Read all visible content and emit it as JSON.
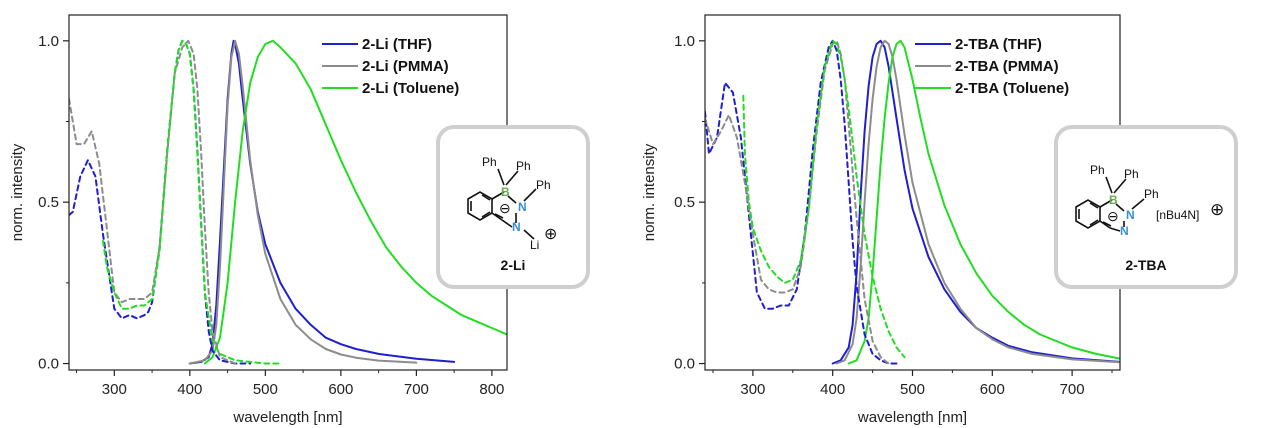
{
  "chart_data": [
    {
      "type": "line",
      "xlabel": "wavelength [nm]",
      "ylabel": "norm. intensity",
      "xlim": [
        240,
        820
      ],
      "ylim": [
        -0.02,
        1.08
      ],
      "xticks": [
        300,
        400,
        500,
        600,
        700,
        800
      ],
      "yticks": [
        0.0,
        0.5,
        1.0
      ],
      "xtick_labels": [
        "300",
        "400",
        "500",
        "600",
        "700",
        "800"
      ],
      "ytick_labels": [
        "0.0",
        "0.5",
        "1.0"
      ],
      "legend_position": "top-right",
      "series": [
        {
          "name": "2-Li (THF)",
          "color": "#1f1fd1",
          "style": "solid",
          "x": [
            400,
            415,
            425,
            430,
            435,
            440,
            445,
            450,
            455,
            458,
            460,
            465,
            470,
            480,
            490,
            500,
            520,
            540,
            560,
            580,
            600,
            620,
            650,
            700,
            750
          ],
          "y": [
            0,
            0.005,
            0.02,
            0.06,
            0.18,
            0.38,
            0.6,
            0.82,
            0.96,
            1.0,
            0.99,
            0.93,
            0.82,
            0.62,
            0.47,
            0.37,
            0.25,
            0.17,
            0.12,
            0.08,
            0.06,
            0.045,
            0.03,
            0.015,
            0.005
          ]
        },
        {
          "name": "2-Li (PMMA)",
          "color": "#8c8c8c",
          "style": "solid",
          "x": [
            400,
            420,
            430,
            435,
            440,
            445,
            450,
            455,
            460,
            465,
            470,
            480,
            490,
            500,
            520,
            540,
            560,
            580,
            600,
            620,
            650,
            700
          ],
          "y": [
            0,
            0.01,
            0.04,
            0.12,
            0.3,
            0.55,
            0.8,
            0.95,
            1.0,
            0.96,
            0.86,
            0.63,
            0.46,
            0.34,
            0.2,
            0.12,
            0.075,
            0.045,
            0.028,
            0.018,
            0.009,
            0.003
          ]
        },
        {
          "name": "2-Li (Toluene)",
          "color": "#22dd22",
          "style": "solid",
          "x": [
            420,
            430,
            440,
            450,
            460,
            470,
            480,
            490,
            500,
            510,
            520,
            540,
            560,
            580,
            600,
            620,
            640,
            660,
            680,
            700,
            720,
            740,
            760,
            780,
            800,
            820
          ],
          "y": [
            0,
            0.02,
            0.08,
            0.25,
            0.5,
            0.72,
            0.87,
            0.95,
            0.99,
            1.0,
            0.98,
            0.93,
            0.85,
            0.74,
            0.63,
            0.53,
            0.44,
            0.36,
            0.3,
            0.25,
            0.21,
            0.18,
            0.15,
            0.13,
            0.11,
            0.09
          ]
        },
        {
          "name": "",
          "color": "#1f1fd1",
          "style": "dashed",
          "x": [
            240,
            245,
            255,
            265,
            275,
            285,
            300,
            310,
            320,
            330,
            340,
            345,
            350,
            360,
            370,
            380,
            385,
            390,
            395,
            400,
            405,
            410,
            415,
            420,
            425,
            430,
            440,
            460,
            480
          ],
          "y": [
            0.46,
            0.47,
            0.58,
            0.63,
            0.58,
            0.4,
            0.17,
            0.14,
            0.15,
            0.14,
            0.15,
            0.16,
            0.19,
            0.36,
            0.66,
            0.9,
            0.97,
            1.0,
            0.99,
            0.96,
            0.85,
            0.66,
            0.43,
            0.22,
            0.1,
            0.04,
            0.01,
            0,
            0
          ]
        },
        {
          "name": "",
          "color": "#8c8c8c",
          "style": "dashed",
          "x": [
            240,
            250,
            260,
            270,
            280,
            290,
            300,
            310,
            320,
            330,
            340,
            350,
            360,
            370,
            380,
            390,
            398,
            405,
            410,
            415,
            420,
            425,
            430,
            440,
            460
          ],
          "y": [
            0.82,
            0.68,
            0.68,
            0.72,
            0.62,
            0.42,
            0.22,
            0.19,
            0.2,
            0.2,
            0.2,
            0.22,
            0.36,
            0.65,
            0.9,
            0.98,
            1.0,
            0.96,
            0.85,
            0.65,
            0.42,
            0.22,
            0.1,
            0.02,
            0
          ]
        },
        {
          "name": "",
          "color": "#22dd22",
          "style": "dashed",
          "x": [
            285,
            290,
            300,
            310,
            320,
            330,
            340,
            350,
            360,
            370,
            380,
            385,
            390,
            395,
            400,
            405,
            410,
            415,
            420,
            430,
            440,
            460,
            480,
            500,
            520
          ],
          "y": [
            0.38,
            0.3,
            0.22,
            0.17,
            0.17,
            0.18,
            0.18,
            0.2,
            0.35,
            0.66,
            0.9,
            0.97,
            1.0,
            0.99,
            0.96,
            0.85,
            0.65,
            0.43,
            0.22,
            0.07,
            0.03,
            0.01,
            0.005,
            0,
            0
          ]
        }
      ],
      "inset": {
        "label": "2-Li",
        "atoms": [
          "Ph",
          "Ph",
          "Ph",
          "B",
          "N",
          "N",
          "Li",
          "⊖",
          "⊕"
        ]
      }
    },
    {
      "type": "line",
      "xlabel": "wavelength [nm]",
      "ylabel": "norm. intensity",
      "xlim": [
        240,
        760
      ],
      "ylim": [
        -0.02,
        1.08
      ],
      "xticks": [
        300,
        400,
        500,
        600,
        700
      ],
      "yticks": [
        0.0,
        0.5,
        1.0
      ],
      "xtick_labels": [
        "300",
        "400",
        "500",
        "600",
        "700"
      ],
      "ytick_labels": [
        "0.0",
        "0.5",
        "1.0"
      ],
      "legend_position": "top-right",
      "series": [
        {
          "name": "2-TBA (THF)",
          "color": "#1f1fd1",
          "style": "solid",
          "x": [
            400,
            410,
            420,
            425,
            430,
            435,
            440,
            445,
            450,
            455,
            460,
            465,
            470,
            480,
            490,
            500,
            520,
            540,
            560,
            580,
            600,
            620,
            650,
            700,
            760
          ],
          "y": [
            0,
            0.01,
            0.05,
            0.12,
            0.28,
            0.52,
            0.72,
            0.86,
            0.95,
            0.99,
            1.0,
            0.98,
            0.92,
            0.76,
            0.6,
            0.48,
            0.33,
            0.23,
            0.16,
            0.11,
            0.08,
            0.055,
            0.035,
            0.016,
            0.005
          ]
        },
        {
          "name": "2-TBA (PMMA)",
          "color": "#8c8c8c",
          "style": "solid",
          "x": [
            405,
            415,
            425,
            430,
            435,
            440,
            445,
            450,
            455,
            460,
            465,
            470,
            475,
            480,
            490,
            500,
            520,
            540,
            560,
            580,
            600,
            620,
            650,
            700,
            760
          ],
          "y": [
            0,
            0.01,
            0.06,
            0.14,
            0.3,
            0.5,
            0.68,
            0.82,
            0.92,
            0.98,
            1.0,
            0.99,
            0.95,
            0.88,
            0.71,
            0.56,
            0.37,
            0.25,
            0.17,
            0.11,
            0.075,
            0.05,
            0.03,
            0.013,
            0.004
          ]
        },
        {
          "name": "2-TBA (Toluene)",
          "color": "#22dd22",
          "style": "solid",
          "x": [
            420,
            430,
            440,
            445,
            450,
            455,
            460,
            465,
            470,
            475,
            480,
            485,
            490,
            500,
            510,
            520,
            540,
            560,
            580,
            600,
            620,
            640,
            660,
            680,
            700,
            730,
            760
          ],
          "y": [
            0,
            0.01,
            0.07,
            0.14,
            0.28,
            0.45,
            0.62,
            0.76,
            0.87,
            0.95,
            0.99,
            1.0,
            0.98,
            0.88,
            0.76,
            0.65,
            0.49,
            0.37,
            0.28,
            0.21,
            0.16,
            0.12,
            0.09,
            0.07,
            0.05,
            0.03,
            0.015
          ]
        },
        {
          "name": "",
          "color": "#1f1fd1",
          "style": "dashed",
          "x": [
            240,
            245,
            255,
            265,
            275,
            285,
            295,
            305,
            315,
            325,
            335,
            345,
            355,
            365,
            375,
            385,
            395,
            400,
            405,
            410,
            415,
            420,
            425,
            430,
            440,
            450,
            460,
            470,
            480
          ],
          "y": [
            0.78,
            0.65,
            0.7,
            0.87,
            0.84,
            0.7,
            0.46,
            0.22,
            0.17,
            0.17,
            0.18,
            0.18,
            0.23,
            0.4,
            0.66,
            0.87,
            0.98,
            1.0,
            0.97,
            0.88,
            0.74,
            0.56,
            0.38,
            0.24,
            0.09,
            0.03,
            0.01,
            0,
            0
          ]
        },
        {
          "name": "",
          "color": "#8c8c8c",
          "style": "dashed",
          "x": [
            240,
            250,
            260,
            270,
            280,
            290,
            300,
            310,
            320,
            330,
            340,
            350,
            360,
            370,
            380,
            390,
            400,
            405,
            410,
            415,
            420,
            430,
            440,
            450,
            460,
            470
          ],
          "y": [
            0.76,
            0.68,
            0.72,
            0.77,
            0.7,
            0.56,
            0.4,
            0.26,
            0.23,
            0.22,
            0.22,
            0.23,
            0.3,
            0.48,
            0.72,
            0.91,
            0.99,
            1.0,
            0.96,
            0.88,
            0.74,
            0.45,
            0.2,
            0.07,
            0.02,
            0
          ]
        },
        {
          "name": "",
          "color": "#22dd22",
          "style": "dashed",
          "x": [
            288,
            290,
            295,
            300,
            310,
            320,
            330,
            340,
            350,
            360,
            370,
            380,
            390,
            400,
            405,
            410,
            415,
            420,
            425,
            430,
            440,
            450,
            460,
            470,
            480,
            490
          ],
          "y": [
            0.83,
            0.65,
            0.5,
            0.42,
            0.35,
            0.3,
            0.27,
            0.25,
            0.26,
            0.32,
            0.48,
            0.74,
            0.92,
            1.0,
            0.99,
            0.95,
            0.88,
            0.79,
            0.69,
            0.58,
            0.4,
            0.27,
            0.17,
            0.1,
            0.05,
            0.02
          ]
        }
      ],
      "inset": {
        "label": "2-TBA",
        "atoms": [
          "Ph",
          "Ph",
          "Ph",
          "B",
          "N",
          "N",
          "⊖",
          "⊕"
        ],
        "counterion": "[nBu4N]"
      }
    }
  ]
}
